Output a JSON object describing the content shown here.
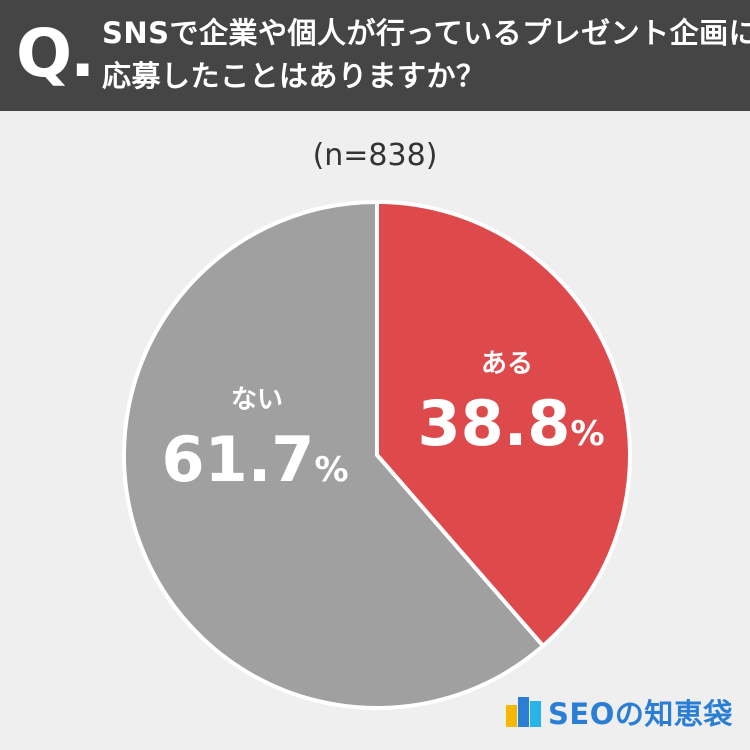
{
  "header": {
    "q_mark": "Q.",
    "question_line1": "SNSで企業や個人が行っているプレゼント企画に",
    "question_line2": "応募したことはありますか？"
  },
  "sample_size": "(n=838)",
  "chart_data": {
    "type": "pie",
    "title": "SNSで企業や個人が行っているプレゼント企画に応募したことはありますか？",
    "n": 838,
    "slices": [
      {
        "label": "ある",
        "value": 38.8,
        "display": "38.8",
        "color": "#de4a4c"
      },
      {
        "label": "ない",
        "value": 61.7,
        "display": "61.7",
        "color": "#a0a0a0"
      }
    ],
    "unit": "%"
  },
  "logo": {
    "text": "SEOの知恵袋",
    "colors": [
      "#f5b800",
      "#2a7fd4",
      "#28b4e6"
    ]
  }
}
